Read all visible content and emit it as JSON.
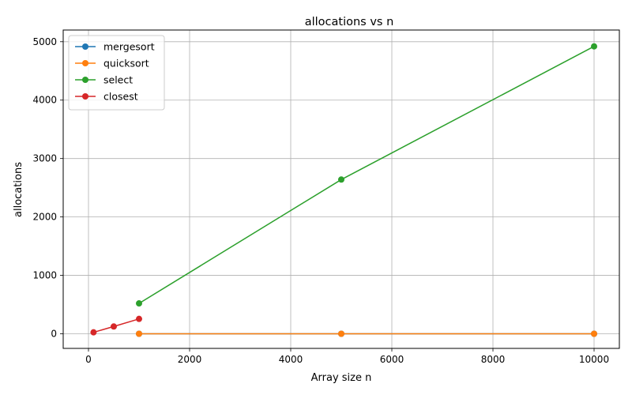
{
  "chart_data": {
    "type": "line",
    "title": "allocations vs n",
    "xlabel": "Array size n",
    "ylabel": "allocations",
    "xlim": [
      -500,
      10500
    ],
    "ylim": [
      -250,
      5200
    ],
    "xticks": [
      0,
      2000,
      4000,
      6000,
      8000,
      10000
    ],
    "yticks": [
      0,
      1000,
      2000,
      3000,
      4000,
      5000
    ],
    "grid": true,
    "legend_position": "top-left",
    "series": [
      {
        "name": "mergesort",
        "color": "#1f77b4",
        "x": [
          1000,
          5000,
          10000
        ],
        "y": [
          0,
          0,
          0
        ]
      },
      {
        "name": "quicksort",
        "color": "#ff7f0e",
        "x": [
          1000,
          5000,
          10000
        ],
        "y": [
          0,
          0,
          0
        ]
      },
      {
        "name": "select",
        "color": "#2ca02c",
        "x": [
          1000,
          5000,
          10000
        ],
        "y": [
          520,
          2640,
          4920
        ]
      },
      {
        "name": "closest",
        "color": "#d62728",
        "x": [
          100,
          500,
          1000
        ],
        "y": [
          25,
          125,
          255
        ]
      }
    ]
  }
}
